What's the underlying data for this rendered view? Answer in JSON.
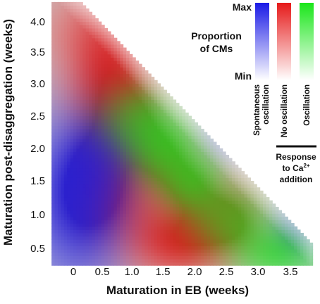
{
  "chart_data": {
    "type": "heatmap",
    "xlabel": "Maturation in EB (weeks)",
    "ylabel": "Maturation post-disaggregation (weeks)",
    "x_ticks": [
      "0",
      "0.5",
      "1.0",
      "1.5",
      "2.0",
      "2.5",
      "3.0",
      "3.5"
    ],
    "y_ticks": [
      "0.5",
      "1.0",
      "1.5",
      "2.0",
      "2.5",
      "3.0",
      "3.5",
      "4.0"
    ],
    "xlim": [
      -0.35,
      3.85
    ],
    "ylim": [
      0.25,
      4.3
    ],
    "legend": {
      "title_line1": "Proportion",
      "title_line2": "of CMs",
      "max_label": "Max",
      "min_label": "Min",
      "position": "top-right",
      "entries": [
        {
          "name_line1": "Spontaneous",
          "name_line2": "oscillation",
          "color": "#1a1ae6"
        },
        {
          "name_line1": "No oscillation",
          "name_line2": "",
          "color": "#e61a1a"
        },
        {
          "name_line1": "Oscillation",
          "name_line2": "",
          "color": "#1ae61a"
        }
      ],
      "response_line1": "Response",
      "response_line2_prefix": "to Ca",
      "response_superscript": "2+",
      "response_line3": "addition"
    },
    "series": [
      {
        "name": "Spontaneous oscillation",
        "color": "#1a1ae6",
        "blobs": [
          {
            "x": 0.1,
            "y": 1.3,
            "sx": 0.5,
            "sy": 0.8,
            "amp": 1.0
          },
          {
            "x": 0.4,
            "y": 1.8,
            "sx": 0.35,
            "sy": 0.5,
            "amp": 0.45
          },
          {
            "x": 2.6,
            "y": 2.4,
            "sx": 0.3,
            "sy": 0.3,
            "amp": 0.45
          },
          {
            "x": 3.7,
            "y": 0.9,
            "sx": 0.3,
            "sy": 0.3,
            "amp": 0.4
          }
        ]
      },
      {
        "name": "No oscillation",
        "color": "#e61a1a",
        "blobs": [
          {
            "x": 0.6,
            "y": 3.15,
            "sx": 0.45,
            "sy": 0.55,
            "amp": 0.9
          },
          {
            "x": 1.75,
            "y": 0.6,
            "sx": 0.5,
            "sy": 0.35,
            "amp": 0.8
          },
          {
            "x": 1.1,
            "y": 1.3,
            "sx": 0.6,
            "sy": 0.6,
            "amp": 0.5
          },
          {
            "x": 0.3,
            "y": 3.9,
            "sx": 0.5,
            "sy": 0.4,
            "amp": 0.35
          },
          {
            "x": 2.5,
            "y": 1.1,
            "sx": 0.4,
            "sy": 0.4,
            "amp": 0.3
          }
        ]
      },
      {
        "name": "Oscillation",
        "color": "#1ae61a",
        "blobs": [
          {
            "x": 0.95,
            "y": 2.5,
            "sx": 0.35,
            "sy": 0.35,
            "amp": 0.8
          },
          {
            "x": 1.45,
            "y": 2.0,
            "sx": 0.35,
            "sy": 0.35,
            "amp": 0.8
          },
          {
            "x": 1.9,
            "y": 1.5,
            "sx": 0.32,
            "sy": 0.3,
            "amp": 0.7
          },
          {
            "x": 2.45,
            "y": 0.95,
            "sx": 0.4,
            "sy": 0.32,
            "amp": 0.8
          },
          {
            "x": 3.3,
            "y": 0.45,
            "sx": 0.45,
            "sy": 0.3,
            "amp": 0.7
          }
        ]
      }
    ],
    "data_region": {
      "max_combined_weeks": 4.4,
      "x_min": -0.35,
      "y_min": 0.25
    },
    "grid": false
  }
}
